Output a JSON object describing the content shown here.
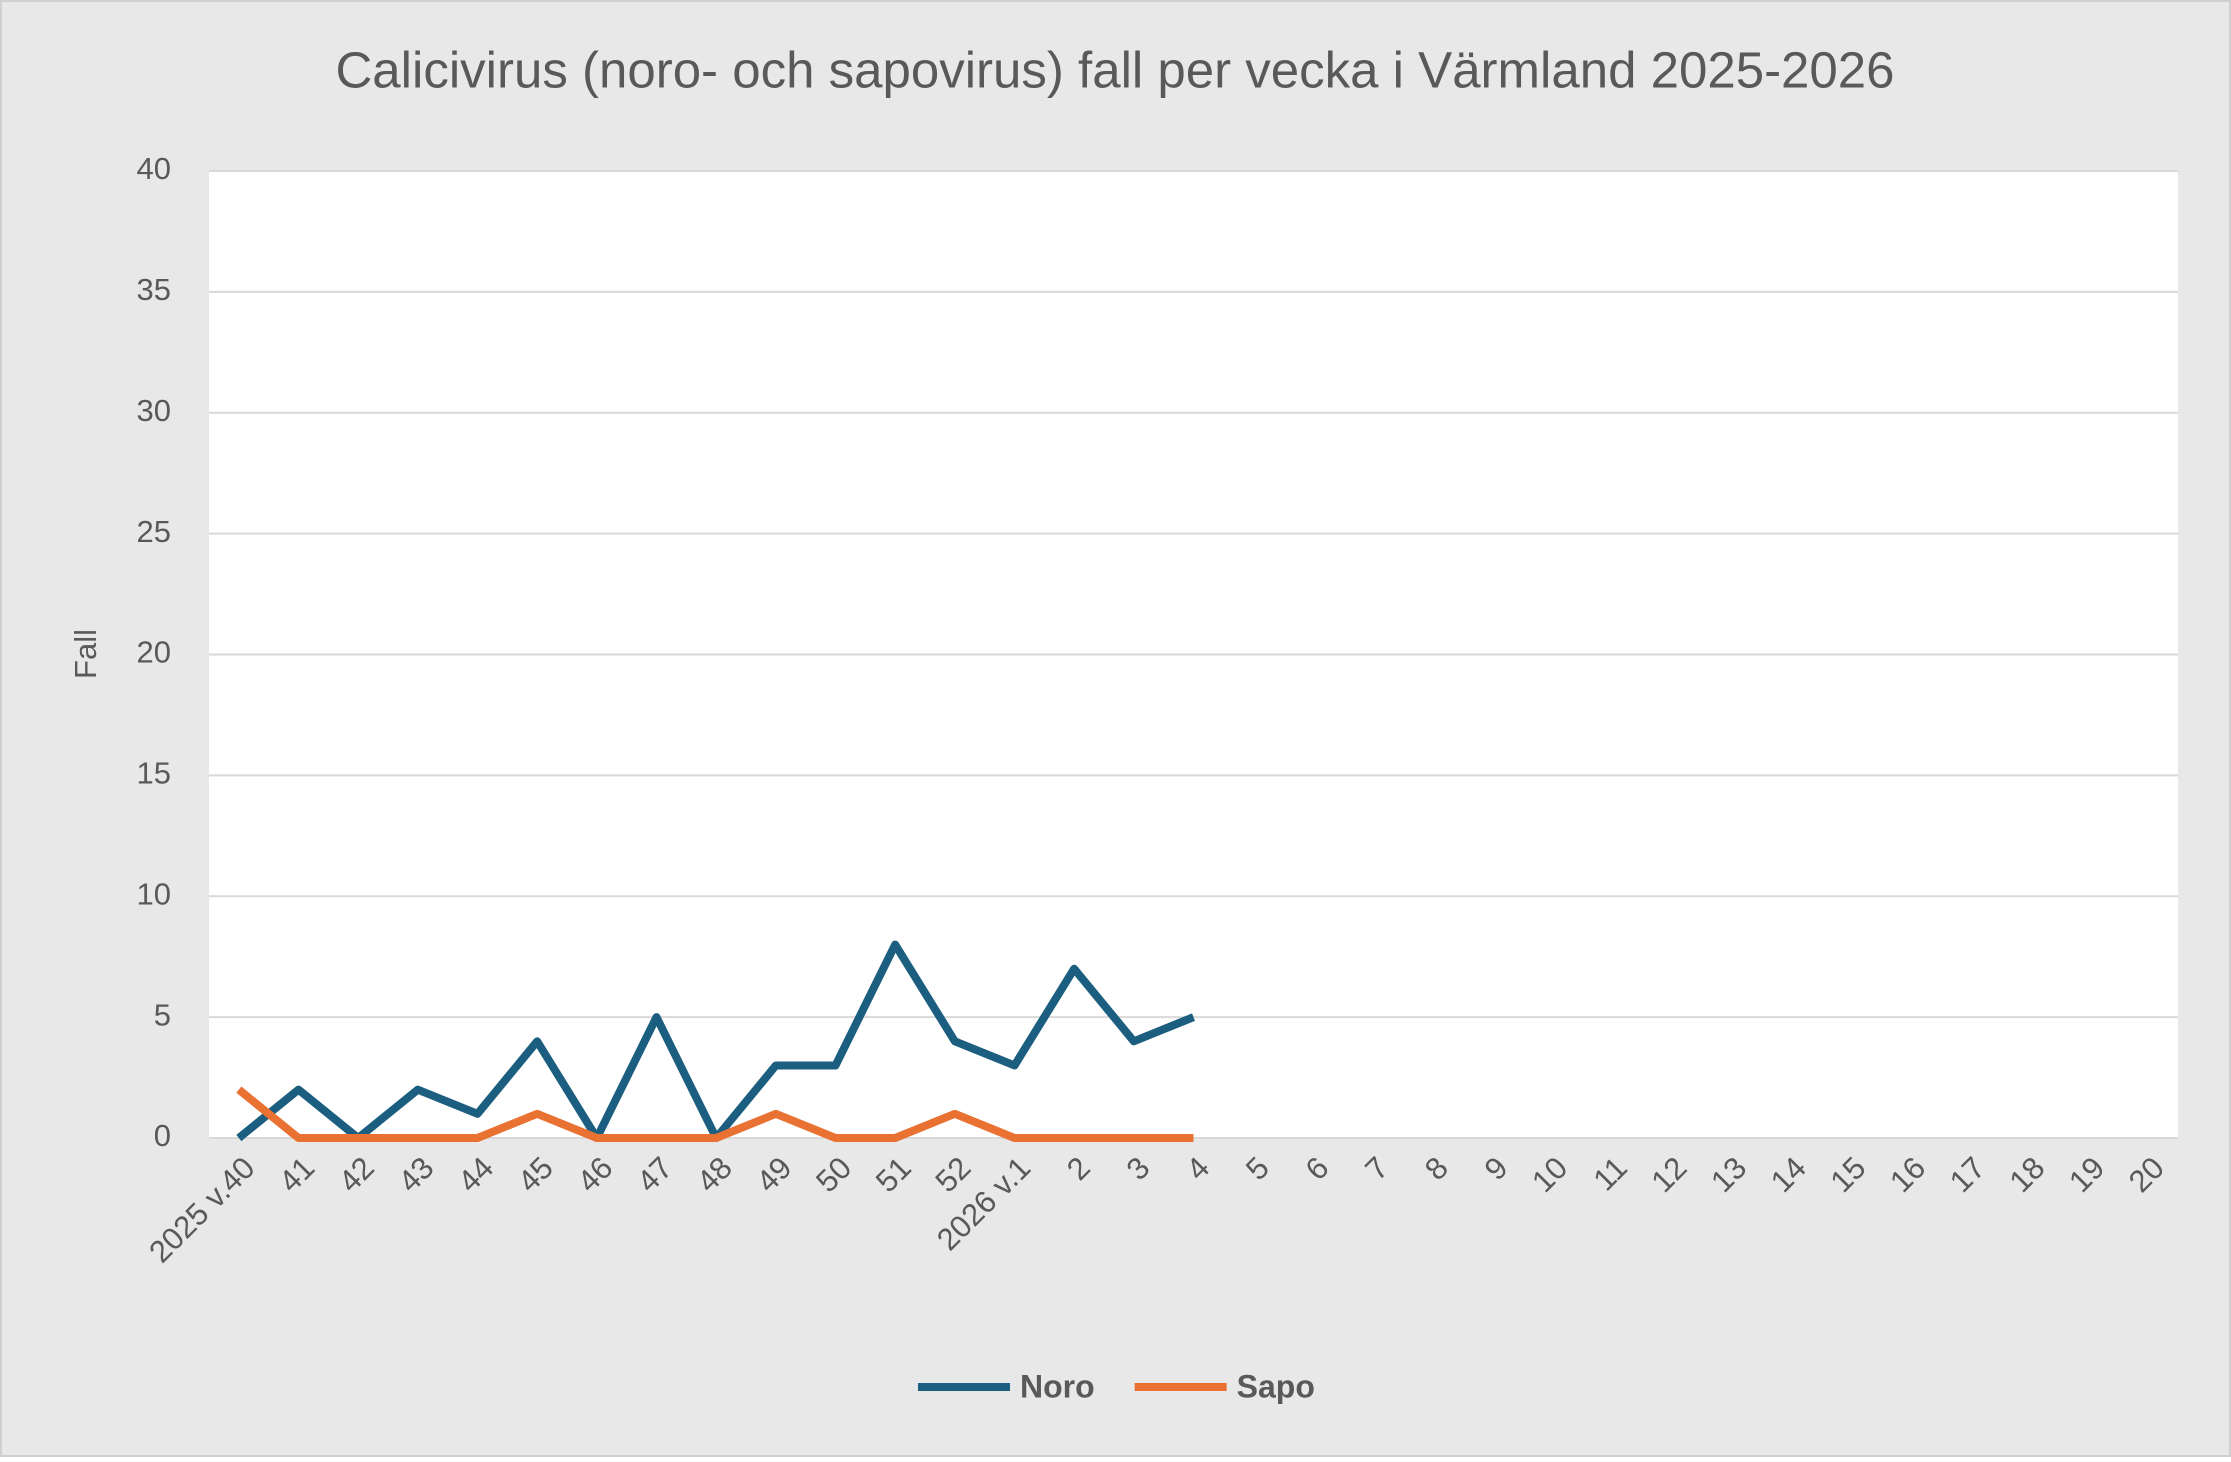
{
  "chart_data": {
    "type": "line",
    "title": "Calicivirus (noro- och sapovirus) fall per vecka i Värmland 2025-2026",
    "y_label": "Fall",
    "categories": [
      "2025 v.40",
      "41",
      "42",
      "43",
      "44",
      "45",
      "46",
      "47",
      "48",
      "49",
      "50",
      "51",
      "52",
      "2026 v.1",
      "2",
      "3",
      "4",
      "5",
      "6",
      "7",
      "8",
      "9",
      "10",
      "11",
      "12",
      "13",
      "14",
      "15",
      "16",
      "17",
      "18",
      "19",
      "20"
    ],
    "series": [
      {
        "name": "Noro",
        "color": "#1b5e80",
        "values": [
          0,
          2,
          0,
          2,
          1,
          4,
          0,
          5,
          0,
          3,
          3,
          8,
          4,
          3,
          7,
          4,
          5,
          null,
          null,
          null,
          null,
          null,
          null,
          null,
          null,
          null,
          null,
          null,
          null,
          null,
          null,
          null,
          null
        ]
      },
      {
        "name": "Sapo",
        "color": "#e97132",
        "values": [
          2,
          0,
          0,
          0,
          0,
          1,
          0,
          0,
          0,
          1,
          0,
          0,
          1,
          0,
          0,
          0,
          0,
          null,
          null,
          null,
          null,
          null,
          null,
          null,
          null,
          null,
          null,
          null,
          null,
          null,
          null,
          null,
          null
        ]
      }
    ],
    "ylim": [
      0,
      40
    ],
    "yticks": [
      0,
      5,
      10,
      15,
      20,
      25,
      30,
      35,
      40
    ],
    "grid": true,
    "legend": "bottom"
  }
}
